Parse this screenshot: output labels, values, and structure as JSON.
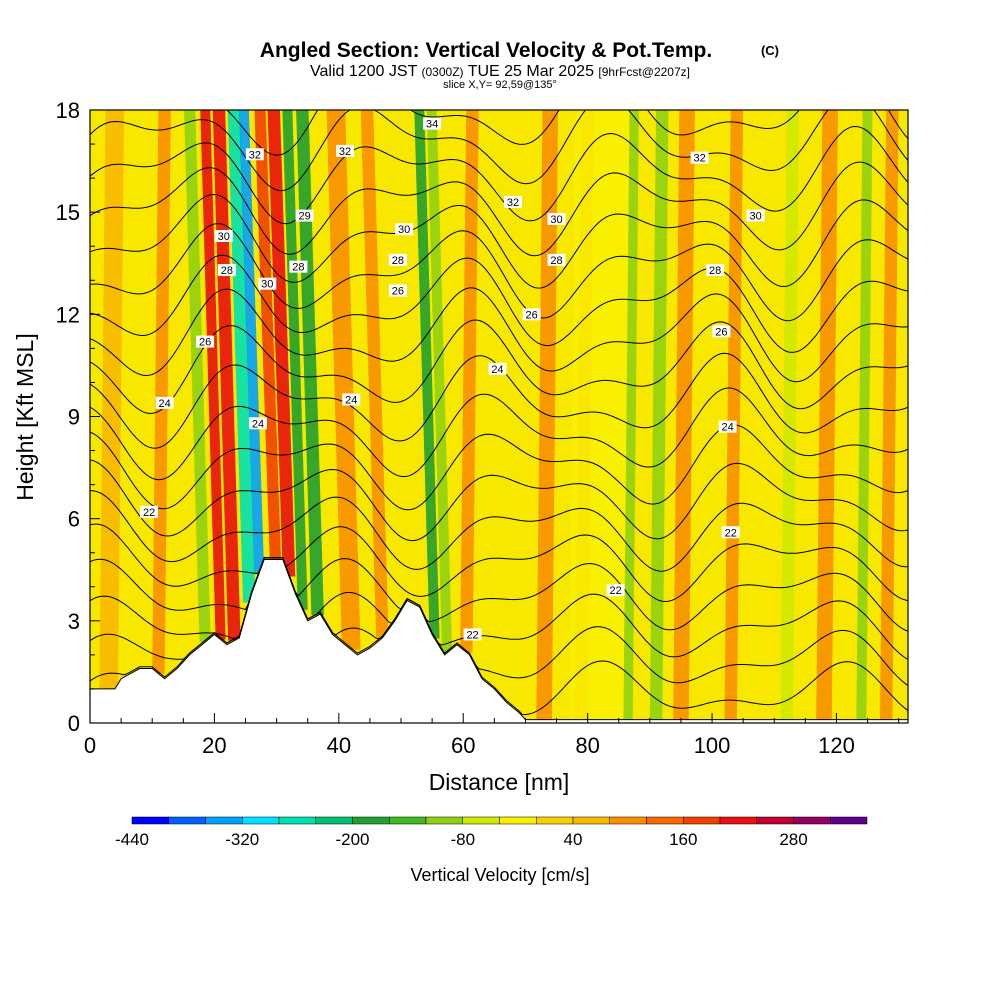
{
  "chart_data": {
    "type": "heatmap",
    "title_main": "Angled Section: Vertical Velocity & Pot.Temp.",
    "title_copyright": "(C)",
    "subtitle_valid": "Valid 1200 JST",
    "subtitle_zulu": "(0300Z)",
    "subtitle_date": "TUE 25 Mar 2025",
    "subtitle_fcst": "[9hrFcst@2207z]",
    "slice_label": "slice X,Y= 92,59@135°",
    "xlabel": "Distance [nm]",
    "ylabel": "Height [Kft MSL]",
    "xlim": [
      0,
      131.5
    ],
    "ylim": [
      0,
      18
    ],
    "x_ticks": [
      0,
      20,
      40,
      60,
      80,
      100,
      120
    ],
    "y_ticks": [
      0,
      3,
      6,
      9,
      12,
      15,
      18
    ],
    "colorbar": {
      "label": "Vertical Velocity [cm/s]",
      "tick_labels": [
        "-440",
        "-320",
        "-200",
        "-80",
        "40",
        "160",
        "280"
      ],
      "colors": [
        "#0000ff",
        "#0060ff",
        "#00a0ff",
        "#00e0ff",
        "#00e0b0",
        "#00c070",
        "#20a030",
        "#40b820",
        "#90d010",
        "#d0e800",
        "#f8f000",
        "#f8d000",
        "#f8b800",
        "#f89000",
        "#f86800",
        "#f04000",
        "#e81010",
        "#c00030",
        "#900060",
        "#600090"
      ]
    },
    "terrain": [
      [
        0,
        1
      ],
      [
        2,
        1
      ],
      [
        4,
        1
      ],
      [
        5,
        1.3
      ],
      [
        8,
        1.6
      ],
      [
        10,
        1.6
      ],
      [
        12,
        1.3
      ],
      [
        14,
        1.6
      ],
      [
        16,
        2.0
      ],
      [
        18,
        2.3
      ],
      [
        20,
        2.6
      ],
      [
        22,
        2.3
      ],
      [
        24,
        2.5
      ],
      [
        26,
        3.8
      ],
      [
        28,
        4.8
      ],
      [
        31,
        4.8
      ],
      [
        33,
        3.8
      ],
      [
        35,
        3.0
      ],
      [
        37,
        3.2
      ],
      [
        39,
        2.6
      ],
      [
        41,
        2.3
      ],
      [
        43,
        2.0
      ],
      [
        45,
        2.2
      ],
      [
        47,
        2.5
      ],
      [
        49,
        3.0
      ],
      [
        51,
        3.6
      ],
      [
        53,
        3.4
      ],
      [
        55,
        2.6
      ],
      [
        57,
        2.0
      ],
      [
        59,
        2.3
      ],
      [
        61,
        2.0
      ],
      [
        63,
        1.3
      ],
      [
        65,
        1.0
      ],
      [
        67,
        0.6
      ],
      [
        69,
        0.3
      ],
      [
        70,
        0.1
      ],
      [
        72,
        0.1
      ],
      [
        131.5,
        0.1
      ]
    ],
    "vv_columns": [
      {
        "x": 3,
        "w": 3,
        "value": 40
      },
      {
        "x": 11,
        "w": 2,
        "value": 90
      },
      {
        "x": 18.5,
        "w": 1.8,
        "value": -120
      },
      {
        "x": 21,
        "w": 1.6,
        "value": 220
      },
      {
        "x": 23.2,
        "w": 2,
        "value": 200
      },
      {
        "x": 25.6,
        "w": 2,
        "value": -260
      },
      {
        "x": 27.2,
        "w": 1.6,
        "value": -340
      },
      {
        "x": 29.8,
        "w": 1.8,
        "value": 180
      },
      {
        "x": 32,
        "w": 2,
        "value": 200
      },
      {
        "x": 34.2,
        "w": 1.6,
        "value": -180
      },
      {
        "x": 36.6,
        "w": 2,
        "value": -200
      },
      {
        "x": 42,
        "w": 3,
        "value": 110
      },
      {
        "x": 47,
        "w": 2,
        "value": 90
      },
      {
        "x": 55.4,
        "w": 1.6,
        "value": -200
      },
      {
        "x": 57.4,
        "w": 1.6,
        "value": -100
      },
      {
        "x": 60.5,
        "w": 2,
        "value": 110
      },
      {
        "x": 73,
        "w": 2.5,
        "value": 80
      },
      {
        "x": 79,
        "w": 2,
        "value": 80
      },
      {
        "x": 82,
        "w": 10,
        "value": -40
      },
      {
        "x": 86.5,
        "w": 1.5,
        "value": -110
      },
      {
        "x": 91,
        "w": 2,
        "value": -90
      },
      {
        "x": 95,
        "w": 2.5,
        "value": 90
      },
      {
        "x": 103,
        "w": 2,
        "value": 80
      },
      {
        "x": 112,
        "w": 2,
        "value": -60
      },
      {
        "x": 118,
        "w": 2.5,
        "value": 90
      },
      {
        "x": 124,
        "w": 1.6,
        "value": -120
      },
      {
        "x": 128,
        "w": 2,
        "value": 110
      }
    ],
    "theta_labels": [
      {
        "text": "34",
        "x": 55,
        "y": 17.6
      },
      {
        "text": "32",
        "x": 26.5,
        "y": 16.7
      },
      {
        "text": "32",
        "x": 41,
        "y": 16.8
      },
      {
        "text": "32",
        "x": 98,
        "y": 16.6
      },
      {
        "text": "32",
        "x": 68,
        "y": 15.3
      },
      {
        "text": "30",
        "x": 21.5,
        "y": 14.3
      },
      {
        "text": "30",
        "x": 50.5,
        "y": 14.5
      },
      {
        "text": "30",
        "x": 75,
        "y": 14.8
      },
      {
        "text": "30",
        "x": 107,
        "y": 14.9
      },
      {
        "text": "29",
        "x": 34.5,
        "y": 14.9
      },
      {
        "text": "28",
        "x": 22,
        "y": 13.3
      },
      {
        "text": "28",
        "x": 33.5,
        "y": 13.4
      },
      {
        "text": "28",
        "x": 49.5,
        "y": 13.6
      },
      {
        "text": "28",
        "x": 75,
        "y": 13.6
      },
      {
        "text": "28",
        "x": 100.5,
        "y": 13.3
      },
      {
        "text": "30",
        "x": 28.5,
        "y": 12.9
      },
      {
        "text": "26",
        "x": 49.5,
        "y": 12.7
      },
      {
        "text": "26",
        "x": 71,
        "y": 12.0
      },
      {
        "text": "26",
        "x": 18.5,
        "y": 11.2
      },
      {
        "text": "26",
        "x": 101.5,
        "y": 11.5
      },
      {
        "text": "24",
        "x": 65.5,
        "y": 10.4
      },
      {
        "text": "24",
        "x": 12,
        "y": 9.4
      },
      {
        "text": "24",
        "x": 42,
        "y": 9.5
      },
      {
        "text": "24",
        "x": 27,
        "y": 8.8
      },
      {
        "text": "24",
        "x": 102.5,
        "y": 8.7
      },
      {
        "text": "22",
        "x": 9.5,
        "y": 6.2
      },
      {
        "text": "22",
        "x": 103,
        "y": 5.6
      },
      {
        "text": "22",
        "x": 84.5,
        "y": 3.9
      },
      {
        "text": "22",
        "x": 61.5,
        "y": 2.6
      }
    ]
  }
}
